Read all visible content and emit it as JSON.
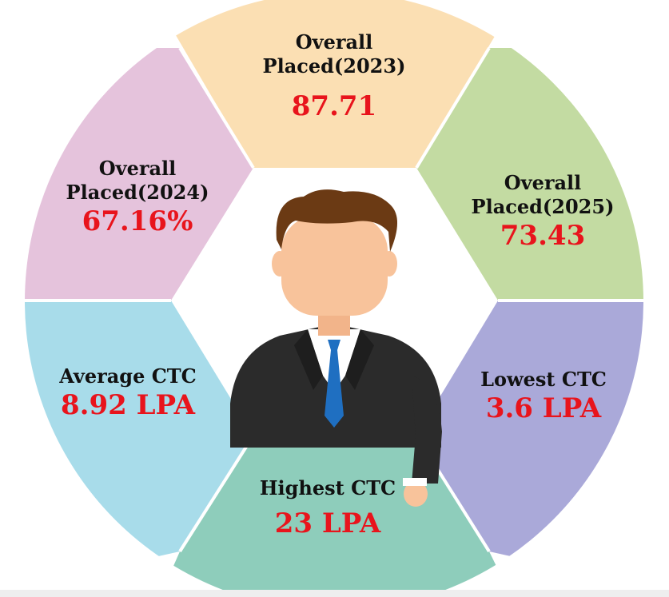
{
  "segments": [
    {
      "key": "top",
      "title_line1": "Overall",
      "title_line2": "Placed(2023)",
      "value": "87.71",
      "color": "#fbdfb3"
    },
    {
      "key": "upper_right",
      "title_line1": "Overall",
      "title_line2": "Placed(2025)",
      "value": "73.43",
      "color": "#c3dba2"
    },
    {
      "key": "lower_right",
      "title_line1": "Lowest CTC",
      "title_line2": "",
      "value": "3.6 LPA",
      "color": "#aaa9d9"
    },
    {
      "key": "bottom",
      "title_line1": "Highest CTC",
      "title_line2": "",
      "value": "23 LPA",
      "color": "#8ecdbb"
    },
    {
      "key": "lower_left",
      "title_line1": "Average CTC",
      "title_line2": "",
      "value": "8.92 LPA",
      "color": "#a8dcea"
    },
    {
      "key": "upper_left",
      "title_line1": "Overall",
      "title_line2": "Placed(2024)",
      "value": "67.16%",
      "color": "#e5c3dc"
    }
  ],
  "colors": {
    "value_text": "#e8141c",
    "title_text": "#111111",
    "suit": "#2b2b2b",
    "hair": "#6b3a14",
    "skin": "#f8c39b",
    "tie": "#1f6fc1"
  },
  "icons": {
    "center": "businessman-icon"
  }
}
